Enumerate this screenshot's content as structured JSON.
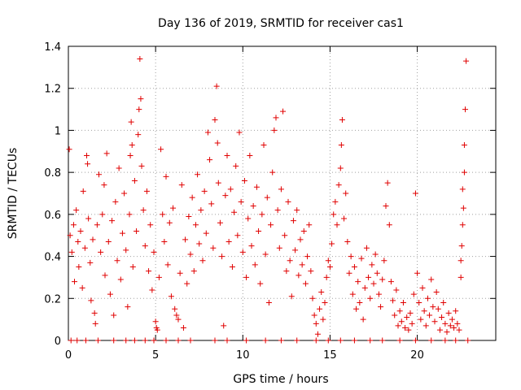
{
  "chart_data": {
    "type": "scatter",
    "title": "Day 136 of 2019, SRMTID for receiver cas1",
    "xlabel": "GPS time / hours",
    "ylabel": "SRMTID / TECUs",
    "xlim": [
      0,
      24.5
    ],
    "ylim": [
      0,
      1.4
    ],
    "xticks": [
      0,
      5,
      10,
      15,
      20
    ],
    "yticks": [
      0,
      0.2,
      0.4,
      0.6,
      0.8,
      1,
      1.2,
      1.4
    ],
    "xtick_labels": [
      "0",
      "5",
      "10",
      "15",
      "20"
    ],
    "ytick_labels": [
      "0",
      "0.2",
      "0.4",
      "0.6",
      "0.8",
      "1",
      "1.2",
      "1.4"
    ],
    "grid": true,
    "marker": "plus",
    "color": "#e00000",
    "series": [
      {
        "name": "SRMTID",
        "points": [
          [
            0.05,
            0.91
          ],
          [
            0.1,
            0.5
          ],
          [
            0.2,
            0.42
          ],
          [
            0.3,
            0.55
          ],
          [
            0.35,
            0.28
          ],
          [
            0.45,
            0.62
          ],
          [
            0.55,
            0.47
          ],
          [
            0.6,
            0.35
          ],
          [
            0.7,
            0.52
          ],
          [
            0.8,
            0.25
          ],
          [
            0.85,
            0.71
          ],
          [
            0.95,
            0.44
          ],
          [
            1.05,
            0.88
          ],
          [
            1.1,
            0.84
          ],
          [
            1.15,
            0.58
          ],
          [
            1.25,
            0.37
          ],
          [
            1.3,
            0.19
          ],
          [
            1.4,
            0.48
          ],
          [
            1.5,
            0.13
          ],
          [
            1.55,
            0.08
          ],
          [
            1.65,
            0.55
          ],
          [
            1.75,
            0.79
          ],
          [
            1.85,
            0.42
          ],
          [
            1.95,
            0.6
          ],
          [
            2.05,
            0.74
          ],
          [
            2.1,
            0.31
          ],
          [
            2.2,
            0.89
          ],
          [
            2.3,
            0.47
          ],
          [
            2.4,
            0.22
          ],
          [
            2.5,
            0.57
          ],
          [
            2.6,
            0.12
          ],
          [
            2.7,
            0.66
          ],
          [
            2.8,
            0.38
          ],
          [
            2.9,
            0.82
          ],
          [
            3.0,
            0.29
          ],
          [
            3.1,
            0.51
          ],
          [
            3.2,
            0.7
          ],
          [
            3.3,
            0.43
          ],
          [
            3.4,
            0.16
          ],
          [
            3.5,
            0.6
          ],
          [
            3.55,
            0.88
          ],
          [
            3.6,
            1.04
          ],
          [
            3.65,
            0.93
          ],
          [
            3.7,
            0.35
          ],
          [
            3.8,
            0.76
          ],
          [
            3.9,
            0.52
          ],
          [
            4.0,
            0.98
          ],
          [
            4.05,
            1.1
          ],
          [
            4.1,
            1.34
          ],
          [
            4.15,
            1.15
          ],
          [
            4.2,
            0.83
          ],
          [
            4.3,
            0.62
          ],
          [
            4.4,
            0.45
          ],
          [
            4.5,
            0.71
          ],
          [
            4.6,
            0.33
          ],
          [
            4.7,
            0.55
          ],
          [
            4.8,
            0.24
          ],
          [
            4.9,
            0.42
          ],
          [
            5.0,
            0.09
          ],
          [
            5.05,
            0.06
          ],
          [
            5.1,
            0.05
          ],
          [
            5.2,
            0.3
          ],
          [
            5.3,
            0.91
          ],
          [
            5.4,
            0.6
          ],
          [
            5.5,
            0.47
          ],
          [
            5.6,
            0.78
          ],
          [
            5.7,
            0.36
          ],
          [
            5.8,
            0.56
          ],
          [
            5.9,
            0.21
          ],
          [
            6.0,
            0.63
          ],
          [
            6.1,
            0.15
          ],
          [
            6.2,
            0.12
          ],
          [
            6.3,
            0.1
          ],
          [
            6.4,
            0.32
          ],
          [
            6.5,
            0.74
          ],
          [
            6.6,
            0.06
          ],
          [
            6.7,
            0.48
          ],
          [
            6.8,
            0.27
          ],
          [
            6.9,
            0.59
          ],
          [
            7.0,
            0.41
          ],
          [
            7.1,
            0.68
          ],
          [
            7.2,
            0.33
          ],
          [
            7.3,
            0.55
          ],
          [
            7.4,
            0.79
          ],
          [
            7.5,
            0.46
          ],
          [
            7.6,
            0.62
          ],
          [
            7.7,
            0.38
          ],
          [
            7.8,
            0.71
          ],
          [
            7.9,
            0.51
          ],
          [
            8.0,
            0.99
          ],
          [
            8.1,
            0.86
          ],
          [
            8.2,
            0.65
          ],
          [
            8.3,
            0.44
          ],
          [
            8.4,
            1.05
          ],
          [
            8.5,
            1.21
          ],
          [
            8.55,
            0.94
          ],
          [
            8.6,
            0.75
          ],
          [
            8.7,
            0.56
          ],
          [
            8.8,
            0.4
          ],
          [
            8.9,
            0.07
          ],
          [
            9.0,
            0.69
          ],
          [
            9.1,
            0.88
          ],
          [
            9.2,
            0.47
          ],
          [
            9.3,
            0.72
          ],
          [
            9.4,
            0.35
          ],
          [
            9.5,
            0.61
          ],
          [
            9.6,
            0.83
          ],
          [
            9.7,
            0.5
          ],
          [
            9.8,
            0.99
          ],
          [
            9.9,
            0.66
          ],
          [
            10.0,
            0.42
          ],
          [
            10.1,
            0.76
          ],
          [
            10.2,
            0.3
          ],
          [
            10.3,
            0.58
          ],
          [
            10.4,
            0.88
          ],
          [
            10.5,
            0.45
          ],
          [
            10.6,
            0.64
          ],
          [
            10.7,
            0.36
          ],
          [
            10.8,
            0.73
          ],
          [
            10.9,
            0.52
          ],
          [
            11.0,
            0.27
          ],
          [
            11.1,
            0.6
          ],
          [
            11.2,
            0.93
          ],
          [
            11.3,
            0.41
          ],
          [
            11.4,
            0.68
          ],
          [
            11.5,
            0.18
          ],
          [
            11.6,
            0.55
          ],
          [
            11.7,
            0.8
          ],
          [
            11.8,
            1.0
          ],
          [
            11.9,
            1.06
          ],
          [
            12.0,
            0.62
          ],
          [
            12.1,
            0.44
          ],
          [
            12.2,
            0.72
          ],
          [
            12.3,
            1.09
          ],
          [
            12.4,
            0.5
          ],
          [
            12.5,
            0.33
          ],
          [
            12.6,
            0.66
          ],
          [
            12.7,
            0.38
          ],
          [
            12.8,
            0.21
          ],
          [
            12.9,
            0.57
          ],
          [
            13.0,
            0.43
          ],
          [
            13.1,
            0.62
          ],
          [
            13.2,
            0.31
          ],
          [
            13.3,
            0.48
          ],
          [
            13.4,
            0.36
          ],
          [
            13.5,
            0.52
          ],
          [
            13.6,
            0.27
          ],
          [
            13.7,
            0.4
          ],
          [
            13.8,
            0.55
          ],
          [
            13.9,
            0.33
          ],
          [
            14.0,
            0.2
          ],
          [
            14.1,
            0.12
          ],
          [
            14.2,
            0.08
          ],
          [
            14.3,
            0.03
          ],
          [
            14.4,
            0.15
          ],
          [
            14.5,
            0.23
          ],
          [
            14.6,
            0.1
          ],
          [
            14.7,
            0.18
          ],
          [
            14.8,
            0.3
          ],
          [
            14.9,
            0.38
          ],
          [
            15.0,
            0.35
          ],
          [
            15.1,
            0.46
          ],
          [
            15.2,
            0.6
          ],
          [
            15.3,
            0.66
          ],
          [
            15.4,
            0.55
          ],
          [
            15.5,
            0.74
          ],
          [
            15.6,
            0.82
          ],
          [
            15.65,
            0.93
          ],
          [
            15.7,
            1.05
          ],
          [
            15.8,
            0.58
          ],
          [
            15.9,
            0.7
          ],
          [
            16.0,
            0.47
          ],
          [
            16.1,
            0.32
          ],
          [
            16.2,
            0.4
          ],
          [
            16.3,
            0.22
          ],
          [
            16.4,
            0.35
          ],
          [
            16.5,
            0.15
          ],
          [
            16.6,
            0.28
          ],
          [
            16.7,
            0.18
          ],
          [
            16.8,
            0.39
          ],
          [
            16.9,
            0.1
          ],
          [
            17.0,
            0.25
          ],
          [
            17.1,
            0.44
          ],
          [
            17.2,
            0.3
          ],
          [
            17.3,
            0.2
          ],
          [
            17.4,
            0.36
          ],
          [
            17.5,
            0.27
          ],
          [
            17.6,
            0.41
          ],
          [
            17.7,
            0.32
          ],
          [
            17.8,
            0.22
          ],
          [
            17.9,
            0.16
          ],
          [
            18.0,
            0.29
          ],
          [
            18.1,
            0.38
          ],
          [
            18.2,
            0.64
          ],
          [
            18.3,
            0.75
          ],
          [
            18.4,
            0.55
          ],
          [
            18.5,
            0.28
          ],
          [
            18.6,
            0.19
          ],
          [
            18.7,
            0.12
          ],
          [
            18.8,
            0.24
          ],
          [
            18.9,
            0.07
          ],
          [
            19.0,
            0.14
          ],
          [
            19.1,
            0.09
          ],
          [
            19.2,
            0.18
          ],
          [
            19.3,
            0.06
          ],
          [
            19.4,
            0.11
          ],
          [
            19.5,
            0.05
          ],
          [
            19.6,
            0.13
          ],
          [
            19.7,
            0.08
          ],
          [
            19.8,
            0.22
          ],
          [
            19.9,
            0.7
          ],
          [
            20.0,
            0.32
          ],
          [
            20.1,
            0.18
          ],
          [
            20.2,
            0.1
          ],
          [
            20.3,
            0.25
          ],
          [
            20.4,
            0.14
          ],
          [
            20.5,
            0.07
          ],
          [
            20.6,
            0.2
          ],
          [
            20.7,
            0.12
          ],
          [
            20.8,
            0.29
          ],
          [
            20.9,
            0.16
          ],
          [
            21.0,
            0.09
          ],
          [
            21.1,
            0.23
          ],
          [
            21.2,
            0.15
          ],
          [
            21.3,
            0.05
          ],
          [
            21.4,
            0.11
          ],
          [
            21.5,
            0.18
          ],
          [
            21.6,
            0.08
          ],
          [
            21.7,
            0.04
          ],
          [
            21.8,
            0.13
          ],
          [
            21.9,
            0.07
          ],
          [
            22.0,
            0.1
          ],
          [
            22.1,
            0.06
          ],
          [
            22.2,
            0.14
          ],
          [
            22.3,
            0.08
          ],
          [
            22.4,
            0.05
          ],
          [
            22.5,
            0.3
          ],
          [
            22.55,
            0.45
          ],
          [
            22.6,
            0.55
          ],
          [
            22.65,
            0.63
          ],
          [
            22.7,
            0.8
          ],
          [
            22.75,
            1.1
          ],
          [
            22.8,
            1.33
          ],
          [
            22.7,
            0.93
          ],
          [
            22.6,
            0.72
          ],
          [
            22.5,
            0.38
          ],
          [
            0.15,
            0
          ],
          [
            0.5,
            0
          ],
          [
            1.0,
            0
          ],
          [
            1.7,
            0
          ],
          [
            2.6,
            0
          ],
          [
            3.3,
            0
          ],
          [
            3.8,
            0
          ],
          [
            4.4,
            0
          ],
          [
            4.9,
            0
          ],
          [
            5.6,
            0
          ],
          [
            6.3,
            0
          ],
          [
            7.0,
            0
          ],
          [
            8.4,
            0
          ],
          [
            9.1,
            0
          ],
          [
            10.2,
            0
          ],
          [
            11.3,
            0
          ],
          [
            12.2,
            0
          ],
          [
            13.1,
            0
          ],
          [
            14.2,
            0
          ],
          [
            14.9,
            0
          ],
          [
            15.6,
            0
          ],
          [
            16.4,
            0
          ],
          [
            17.3,
            0
          ],
          [
            18.0,
            0
          ],
          [
            19.0,
            0
          ],
          [
            19.9,
            0
          ],
          [
            20.8,
            0
          ],
          [
            21.6,
            0
          ],
          [
            22.2,
            0
          ],
          [
            22.9,
            0
          ]
        ]
      }
    ]
  }
}
